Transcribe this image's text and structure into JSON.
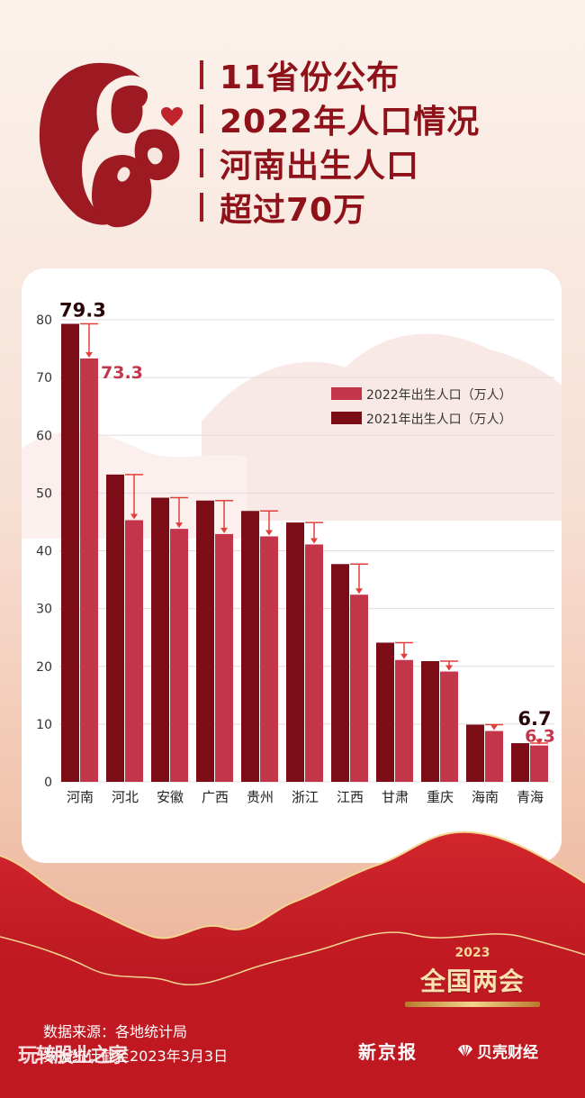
{
  "title_lines": [
    "11省份公布",
    "2022年人口情况",
    "河南出生人口",
    "超过70万"
  ],
  "colors": {
    "title": "#8f1119",
    "series_2021": "#7c0d17",
    "series_2022": "#c3364a",
    "arrow": "#e0403a",
    "accent_gold": "#f3d58f",
    "bottom_red": "#b8121d"
  },
  "icons": [
    "mother-child-icon",
    "heart-icon",
    "shell-icon"
  ],
  "chart_data": {
    "type": "bar",
    "categories": [
      "河南",
      "河北",
      "安徽",
      "广西",
      "贵州",
      "浙江",
      "江西",
      "甘肃",
      "重庆",
      "海南",
      "青海"
    ],
    "series": [
      {
        "name": "2021年出生人口（万人）",
        "values": [
          79.3,
          53.2,
          49.2,
          48.7,
          46.9,
          44.9,
          37.7,
          24.1,
          20.9,
          9.9,
          6.7
        ]
      },
      {
        "name": "2022年出生人口（万人）",
        "values": [
          73.3,
          45.3,
          43.8,
          42.9,
          42.5,
          41.1,
          32.4,
          21.1,
          19.1,
          8.8,
          6.3
        ]
      }
    ],
    "data_labels": [
      {
        "category": "河南",
        "series": "2021",
        "text": "79.3"
      },
      {
        "category": "河南",
        "series": "2022",
        "text": "73.3"
      },
      {
        "category": "青海",
        "series": "2021",
        "text": "6.7"
      },
      {
        "category": "青海",
        "series": "2022",
        "text": "6.3"
      }
    ],
    "yticks": [
      0,
      10,
      20,
      30,
      40,
      50,
      60,
      70,
      80
    ],
    "ylim": [
      0,
      80
    ],
    "grid": true,
    "legend_position": "top-right",
    "xlabel": "",
    "ylabel": ""
  },
  "logo": {
    "year": "2023",
    "name": "全国两会"
  },
  "footer": {
    "source": "数据来源：各地统计局",
    "date": "数据统计截至2023年3月3日",
    "watermark": "玩转股业之家"
  },
  "brands": {
    "xjb": "新京报",
    "bk": "贝壳财经"
  }
}
